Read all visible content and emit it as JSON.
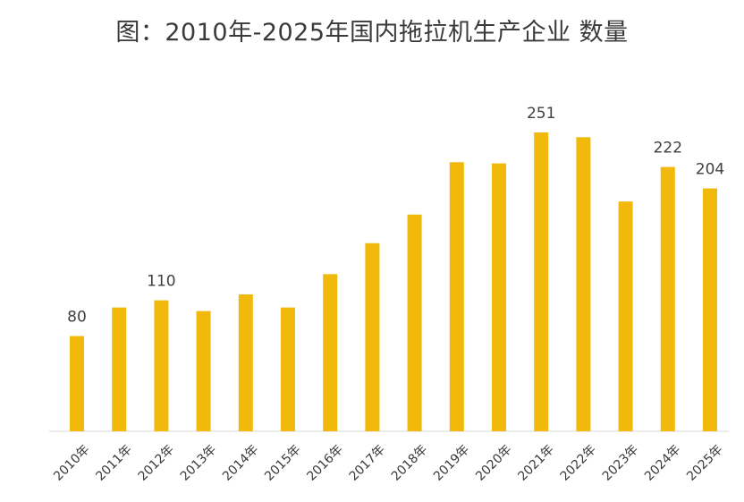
{
  "chart_data": {
    "type": "bar",
    "title": "图：2010年-2025年国内拖拉机生产企业 数量",
    "categories": [
      "2010年",
      "2011年",
      "2012年",
      "2013年",
      "2014年",
      "2015年",
      "2016年",
      "2017年",
      "2018年",
      "2019年",
      "2020年",
      "2021年",
      "2022年",
      "2023年",
      "2024年",
      "2025年"
    ],
    "values": [
      80,
      104,
      110,
      101,
      115,
      104,
      132,
      158,
      182,
      226,
      225,
      251,
      247,
      193,
      222,
      204
    ],
    "data_labels": {
      "0": "80",
      "2": "110",
      "11": "251",
      "14": "222",
      "15": "204"
    },
    "ylim": [
      0,
      280
    ],
    "bar_color": "#f0b90b",
    "axis_color": "#d9d9d9",
    "grid": false,
    "legend": "none"
  }
}
